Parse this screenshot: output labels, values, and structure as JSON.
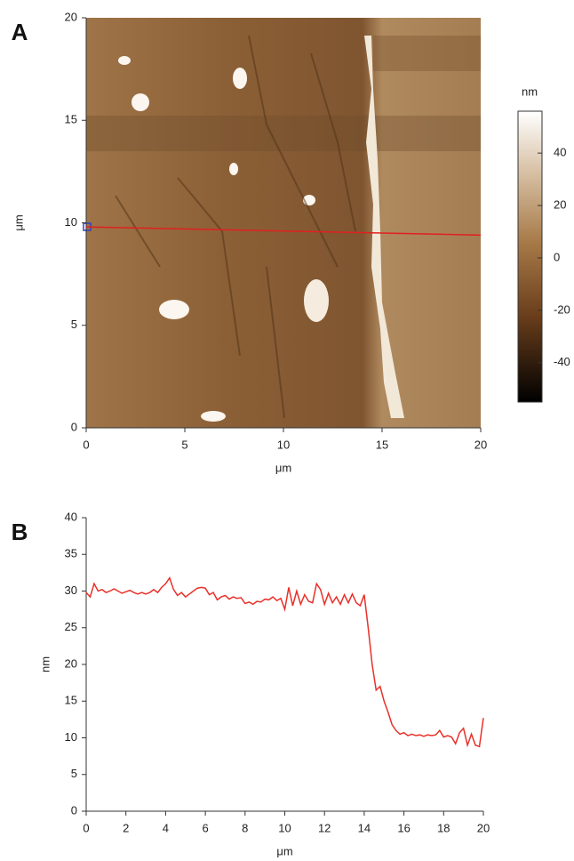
{
  "chart_data": [
    {
      "type": "image",
      "panel_label": "A",
      "xlabel": "μm",
      "ylabel": "μm",
      "xlim": [
        0,
        20
      ],
      "ylim": [
        0,
        20
      ],
      "xticks": [
        0,
        5,
        10,
        15,
        20
      ],
      "yticks": [
        0,
        5,
        10,
        15,
        20
      ],
      "colorbar": {
        "label": "nm",
        "lim": [
          -55,
          56
        ],
        "ticks": [
          -40,
          -20,
          0,
          20,
          40
        ]
      },
      "profile": {
        "color": "#e02020",
        "x": [
          0,
          20
        ],
        "y": [
          9.8,
          9.4
        ]
      }
    },
    {
      "type": "line",
      "panel_label": "B",
      "xlabel": "μm",
      "ylabel": "nm",
      "xlim": [
        0,
        20
      ],
      "ylim": [
        0,
        40
      ],
      "xticks": [
        0,
        2,
        4,
        6,
        8,
        10,
        12,
        14,
        16,
        18,
        20
      ],
      "yticks": [
        0,
        5,
        10,
        15,
        20,
        25,
        30,
        35,
        40
      ],
      "x": [
        0,
        0.2,
        0.4,
        0.6,
        0.8,
        1,
        1.2,
        1.4,
        1.6,
        1.8,
        2,
        2.2,
        2.4,
        2.6,
        2.8,
        3,
        3.2,
        3.4,
        3.6,
        3.8,
        4,
        4.2,
        4.4,
        4.6,
        4.8,
        5,
        5.2,
        5.4,
        5.6,
        5.8,
        6,
        6.2,
        6.4,
        6.6,
        6.8,
        7,
        7.2,
        7.4,
        7.6,
        7.8,
        8,
        8.2,
        8.4,
        8.6,
        8.8,
        9,
        9.2,
        9.4,
        9.6,
        9.8,
        10,
        10.2,
        10.4,
        10.6,
        10.8,
        11,
        11.2,
        11.4,
        11.6,
        11.8,
        12,
        12.2,
        12.4,
        12.6,
        12.8,
        13,
        13.2,
        13.4,
        13.6,
        13.8,
        14,
        14.2,
        14.4,
        14.6,
        14.8,
        15,
        15.2,
        15.4,
        15.6,
        15.8,
        16,
        16.2,
        16.4,
        16.6,
        16.8,
        17,
        17.2,
        17.4,
        17.6,
        17.8,
        18,
        18.2,
        18.4,
        18.6,
        18.8,
        19,
        19.2,
        19.4,
        19.6,
        19.8,
        20
      ],
      "series": [
        {
          "color": "#e8312a",
          "values": [
            29.8,
            29.2,
            31,
            30,
            30.2,
            29.8,
            30,
            30.3,
            30,
            29.7,
            29.9,
            30.1,
            29.8,
            29.6,
            29.8,
            29.6,
            29.8,
            30.2,
            29.8,
            30.5,
            31,
            31.8,
            30.2,
            29.4,
            29.8,
            29.2,
            29.6,
            30,
            30.4,
            30.5,
            30.4,
            29.5,
            29.8,
            28.8,
            29.2,
            29.4,
            28.9,
            29.2,
            29,
            29.1,
            28.3,
            28.5,
            28.2,
            28.6,
            28.5,
            28.9,
            28.8,
            29.2,
            28.7,
            29,
            27.5,
            30.5,
            28,
            30,
            28.2,
            29.5,
            28.6,
            28.4,
            31,
            30.2,
            28.2,
            29.7,
            28.4,
            29.2,
            28.2,
            29.5,
            28.4,
            29.6,
            28.4,
            28,
            29.5,
            25,
            20,
            16.5,
            17,
            15,
            13.5,
            11.8,
            11,
            10.5,
            10.7,
            10.3,
            10.5,
            10.3,
            10.4,
            10.2,
            10.4,
            10.3,
            10.4,
            11,
            10.1,
            10.3,
            10.1,
            9.2,
            10.7,
            11.3,
            9,
            10.5,
            9,
            8.8,
            12.7
          ]
        }
      ]
    }
  ]
}
